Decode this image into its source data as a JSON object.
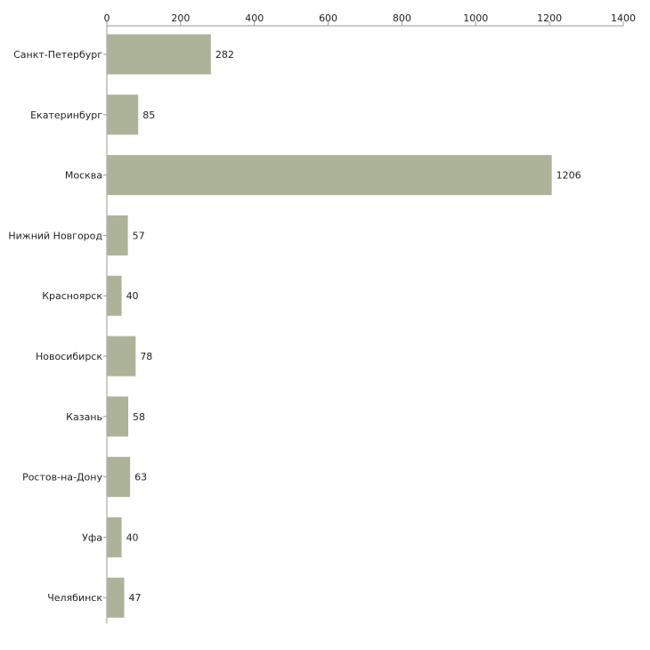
{
  "chart_data": {
    "type": "bar",
    "orientation": "horizontal",
    "title": "",
    "xlabel": "",
    "ylabel": "",
    "xlim": [
      0,
      1400
    ],
    "x_ticks": [
      0,
      200,
      400,
      600,
      800,
      1000,
      1200,
      1400
    ],
    "grid": false,
    "axis_position": "top",
    "bar_color": "#adb399",
    "categories": [
      "Санкт-Петербург",
      "Екатеринбург",
      "Москва",
      "Нижний Новгород",
      "Красноярск",
      "Новосибирск",
      "Казань",
      "Ростов-на-Дону",
      "Уфа",
      "Челябинск"
    ],
    "values": [
      282,
      85,
      1206,
      57,
      40,
      78,
      58,
      63,
      40,
      47
    ]
  }
}
